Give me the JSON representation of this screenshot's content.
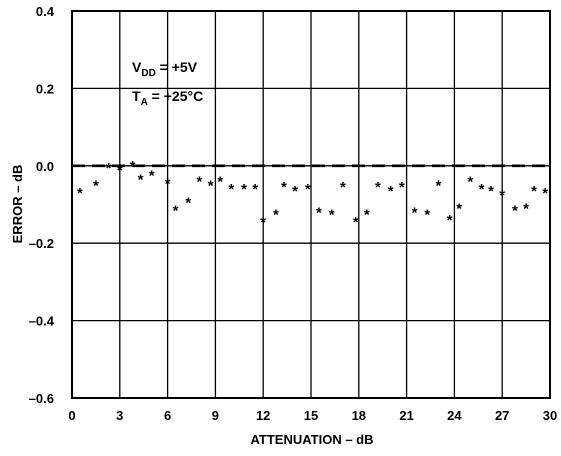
{
  "chart_data": {
    "type": "scatter",
    "title": "",
    "xlabel": "ATTENUATION – dB",
    "ylabel": "ERROR – dB",
    "xlim": [
      0,
      30
    ],
    "ylim": [
      -0.6,
      0.4
    ],
    "xticks": [
      0,
      3,
      6,
      9,
      12,
      15,
      18,
      21,
      24,
      27,
      30
    ],
    "xtick_labels": [
      "0",
      "3",
      "6",
      "9",
      "12",
      "15",
      "18",
      "21",
      "24",
      "27",
      "30"
    ],
    "yticks": [
      0.4,
      0.2,
      0.0,
      -0.2,
      -0.4,
      -0.6
    ],
    "ytick_labels": [
      "0.4",
      "0.2",
      "0.0",
      "–0.2",
      "–0.4",
      "–0.6"
    ],
    "grid": true,
    "reference_line": {
      "y": 0.0,
      "style": "dashed"
    },
    "annotations": [
      {
        "main": "V",
        "sub": "DD",
        "rest": " = +5V"
      },
      {
        "main": "T",
        "sub": "A",
        "rest": " = +25°C"
      }
    ],
    "marker": "*",
    "series": [
      {
        "x": [
          0.5,
          1.5,
          2.3,
          3.0,
          3.8,
          4.3,
          5.0,
          6.0,
          6.5,
          7.3,
          8.0,
          8.7,
          9.3,
          10.0,
          10.8,
          11.5,
          12.0,
          12.8,
          13.3,
          14.0,
          14.8,
          15.5,
          16.3,
          17.0,
          17.8,
          18.5,
          19.2,
          20.0,
          20.7,
          21.5,
          22.3,
          23.0,
          23.7,
          24.3,
          25.0,
          25.7,
          26.3,
          27.0,
          27.8,
          28.5,
          29.0,
          29.7
        ],
        "y": [
          -0.06,
          -0.04,
          0.005,
          0.0,
          0.01,
          -0.025,
          -0.015,
          -0.035,
          -0.105,
          -0.085,
          -0.03,
          -0.04,
          -0.03,
          -0.05,
          -0.05,
          -0.05,
          -0.135,
          -0.115,
          -0.045,
          -0.055,
          -0.05,
          -0.11,
          -0.115,
          -0.045,
          -0.135,
          -0.115,
          -0.045,
          -0.055,
          -0.045,
          -0.11,
          -0.115,
          -0.04,
          -0.13,
          -0.1,
          -0.03,
          -0.05,
          -0.055,
          -0.065,
          -0.105,
          -0.1,
          -0.055,
          -0.06
        ]
      }
    ]
  }
}
